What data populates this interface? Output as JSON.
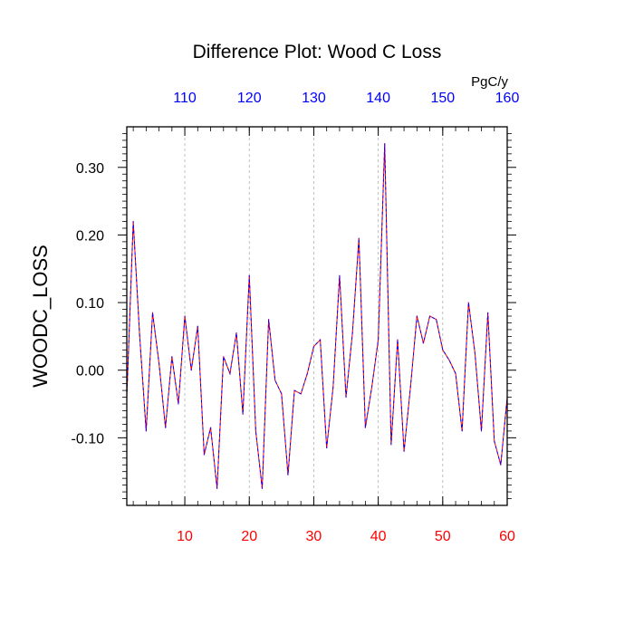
{
  "chart_data": {
    "type": "line",
    "title": "Difference Plot: Wood C Loss",
    "units_label": "PgC/y",
    "ylabel": "WOODC_LOSS",
    "xlabel": "",
    "xlim": [
      1,
      60
    ],
    "ylim": [
      -0.2,
      0.36
    ],
    "bottom_axis_ticks": [
      10,
      20,
      30,
      40,
      50,
      60
    ],
    "bottom_axis_tick_labels": [
      "10",
      "20",
      "30",
      "40",
      "50",
      "60"
    ],
    "top_axis_ticks": [
      110,
      120,
      130,
      140,
      150,
      160
    ],
    "top_axis_tick_labels": [
      "110",
      "120",
      "130",
      "140",
      "150",
      "160"
    ],
    "top_axis_offset": 100,
    "y_ticks": [
      -0.1,
      0.0,
      0.1,
      0.2,
      0.3
    ],
    "y_tick_labels": [
      "-0.10",
      "0.00",
      "0.10",
      "0.20",
      "0.30"
    ],
    "grid": "vertical dashed at major x ticks",
    "legend": "none",
    "colors": {
      "bottom_axis_labels": "#ff0000",
      "top_axis_labels": "#0000ff",
      "series_line_red": "#ff0000",
      "series_line_blue": "#0000ff",
      "grid": "#b0b0b0"
    },
    "x": [
      1,
      2,
      3,
      4,
      5,
      6,
      7,
      8,
      9,
      10,
      11,
      12,
      13,
      14,
      15,
      16,
      17,
      18,
      19,
      20,
      21,
      22,
      23,
      24,
      25,
      26,
      27,
      28,
      29,
      30,
      31,
      32,
      33,
      34,
      35,
      36,
      37,
      38,
      39,
      40,
      41,
      42,
      43,
      44,
      45,
      46,
      47,
      48,
      49,
      50,
      51,
      52,
      53,
      54,
      55,
      56,
      57,
      58,
      59,
      60
    ],
    "series": [
      {
        "values": [
          -0.04,
          0.22,
          0.05,
          -0.09,
          0.085,
          0.01,
          -0.085,
          0.02,
          -0.05,
          0.08,
          0.0,
          0.065,
          -0.125,
          -0.085,
          -0.175,
          0.02,
          -0.005,
          0.055,
          -0.065,
          0.14,
          -0.09,
          -0.175,
          0.075,
          -0.015,
          -0.035,
          -0.155,
          -0.03,
          -0.035,
          -0.005,
          0.035,
          0.045,
          -0.115,
          -0.025,
          0.14,
          -0.04,
          0.055,
          0.195,
          -0.085,
          -0.025,
          0.045,
          0.335,
          -0.11,
          0.045,
          -0.12,
          -0.025,
          0.08,
          0.04,
          0.08,
          0.075,
          0.03,
          0.015,
          -0.005,
          -0.09,
          0.1,
          0.025,
          -0.09,
          0.085,
          -0.105,
          -0.14,
          -0.04
        ]
      }
    ]
  }
}
